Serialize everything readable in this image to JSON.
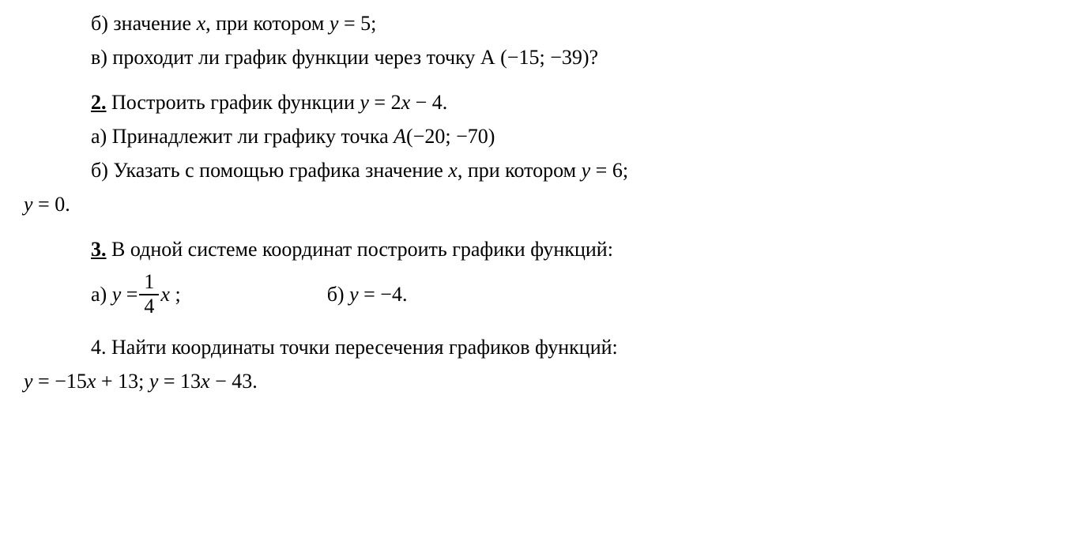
{
  "q1": {
    "partB": "б) значение <span class=\"italic\">x</span>, при котором <span class=\"italic\">y</span> = 5;",
    "partV": "в) проходит ли график функции через точку А (−15; −39)?"
  },
  "q2": {
    "label": "2.",
    "main": "Построить график функции <span class=\"italic\">y</span> = 2<span class=\"italic\">x</span> − 4.",
    "partA": "а) Принадлежит ли графику точка <span class=\"italic\">A</span>(−20; −70)",
    "partB1": "б) Указать с помощью графика значение <span class=\"italic\">x</span>, при котором <span class=\"italic\">y</span> = 6;",
    "partB2": "<span class=\"italic\">y</span> = 0."
  },
  "q3": {
    "label": "3.",
    "main": "В одной системе координат построить графики функций:",
    "partA_prefix": "а) <span class=\"italic\">y</span> = ",
    "frac_num": "1",
    "frac_den": "4",
    "partA_suffix": "<span class=\"italic\">x</span> ;",
    "partB": "б) <span class=\"italic\">y</span> = −4."
  },
  "q4": {
    "label": "4.",
    "main": "Найти координаты точки пересечения графиков функций:",
    "eq": "<span class=\"italic\">y</span> = −15<span class=\"italic\">x</span> + 13; <span class=\"italic\">y</span> = 13<span class=\"italic\">x</span> − 43."
  }
}
